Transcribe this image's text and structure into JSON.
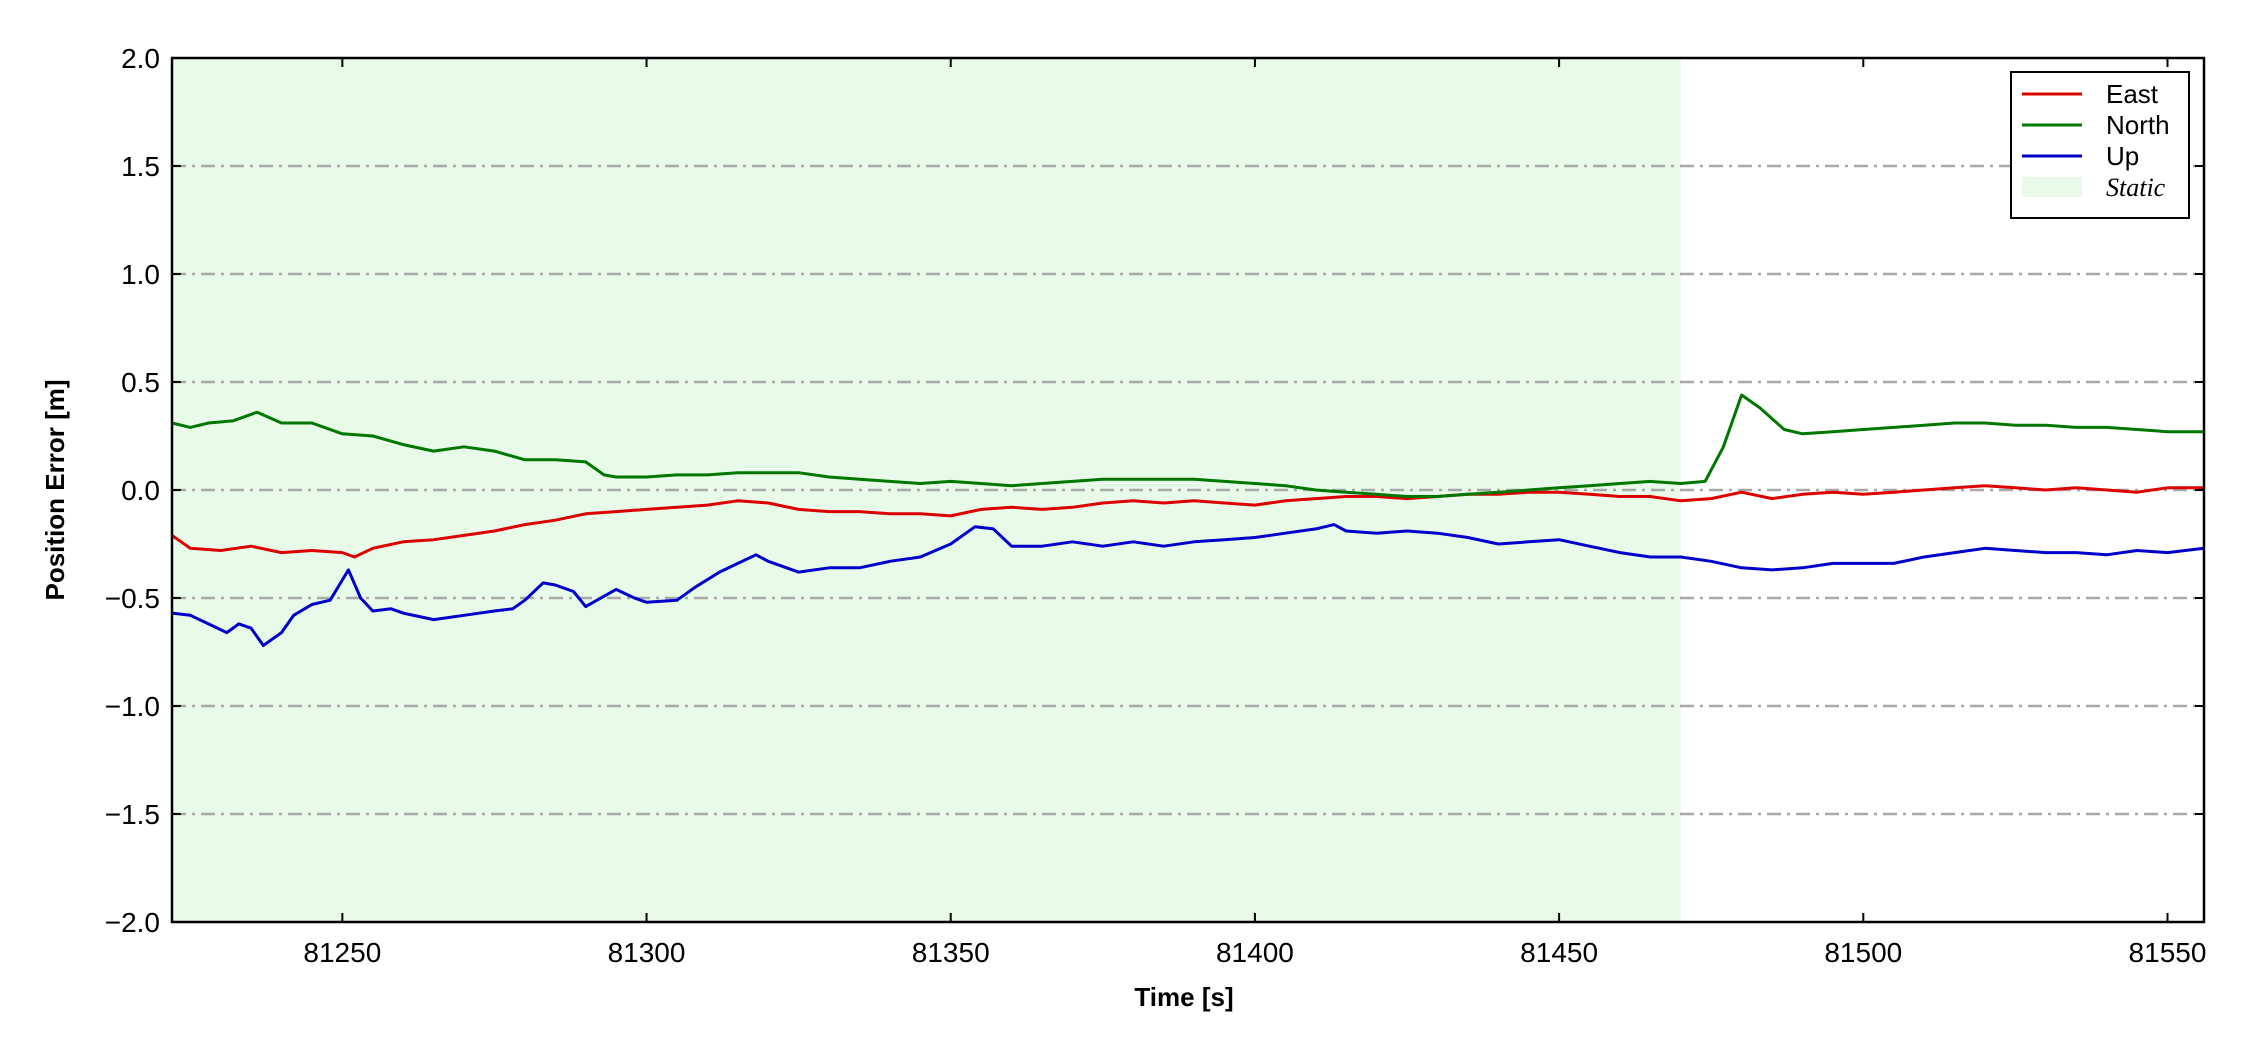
{
  "chart_data": {
    "type": "line",
    "title": "",
    "xlabel": "Time [s]",
    "ylabel": "Position Error [m]",
    "xlim": [
      81222,
      81556
    ],
    "ylim": [
      -2.0,
      2.0
    ],
    "x_ticks": [
      81250,
      81300,
      81350,
      81400,
      81450,
      81500,
      81550
    ],
    "x_tick_labels": [
      "81250",
      "81300",
      "81350",
      "81400",
      "81450",
      "81500",
      "81550"
    ],
    "y_ticks": [
      -2.0,
      -1.5,
      -1.0,
      -0.5,
      0.0,
      0.5,
      1.0,
      1.5,
      2.0
    ],
    "y_tick_labels": [
      "−2.0",
      "−1.5",
      "−1.0",
      "−0.5",
      "0.0",
      "0.5",
      "1.0",
      "1.5",
      "2.0"
    ],
    "grid": "horizontal dash-dot",
    "legend_position": "top-right",
    "static_region": {
      "label": "Static",
      "x_start": 81222,
      "x_end": 81470,
      "color": "#e8fbe8"
    },
    "series": [
      {
        "name": "East",
        "color": "#dd0000",
        "points": [
          [
            81222,
            -0.21
          ],
          [
            81225,
            -0.27
          ],
          [
            81230,
            -0.28
          ],
          [
            81235,
            -0.26
          ],
          [
            81240,
            -0.29
          ],
          [
            81245,
            -0.28
          ],
          [
            81250,
            -0.29
          ],
          [
            81252,
            -0.31
          ],
          [
            81255,
            -0.27
          ],
          [
            81260,
            -0.24
          ],
          [
            81265,
            -0.23
          ],
          [
            81270,
            -0.21
          ],
          [
            81275,
            -0.19
          ],
          [
            81280,
            -0.16
          ],
          [
            81285,
            -0.14
          ],
          [
            81290,
            -0.11
          ],
          [
            81295,
            -0.1
          ],
          [
            81300,
            -0.09
          ],
          [
            81305,
            -0.08
          ],
          [
            81310,
            -0.07
          ],
          [
            81315,
            -0.05
          ],
          [
            81320,
            -0.06
          ],
          [
            81325,
            -0.09
          ],
          [
            81330,
            -0.1
          ],
          [
            81335,
            -0.1
          ],
          [
            81340,
            -0.11
          ],
          [
            81345,
            -0.11
          ],
          [
            81350,
            -0.12
          ],
          [
            81355,
            -0.09
          ],
          [
            81360,
            -0.08
          ],
          [
            81365,
            -0.09
          ],
          [
            81370,
            -0.08
          ],
          [
            81375,
            -0.06
          ],
          [
            81380,
            -0.05
          ],
          [
            81385,
            -0.06
          ],
          [
            81390,
            -0.05
          ],
          [
            81395,
            -0.06
          ],
          [
            81400,
            -0.07
          ],
          [
            81405,
            -0.05
          ],
          [
            81410,
            -0.04
          ],
          [
            81415,
            -0.03
          ],
          [
            81420,
            -0.03
          ],
          [
            81425,
            -0.04
          ],
          [
            81430,
            -0.03
          ],
          [
            81435,
            -0.02
          ],
          [
            81440,
            -0.02
          ],
          [
            81445,
            -0.01
          ],
          [
            81450,
            -0.01
          ],
          [
            81455,
            -0.02
          ],
          [
            81460,
            -0.03
          ],
          [
            81465,
            -0.03
          ],
          [
            81470,
            -0.05
          ],
          [
            81475,
            -0.04
          ],
          [
            81480,
            -0.01
          ],
          [
            81485,
            -0.04
          ],
          [
            81490,
            -0.02
          ],
          [
            81495,
            -0.01
          ],
          [
            81500,
            -0.02
          ],
          [
            81505,
            -0.01
          ],
          [
            81510,
            0.0
          ],
          [
            81515,
            0.01
          ],
          [
            81520,
            0.02
          ],
          [
            81525,
            0.01
          ],
          [
            81530,
            0.0
          ],
          [
            81535,
            0.01
          ],
          [
            81540,
            0.0
          ],
          [
            81545,
            -0.01
          ],
          [
            81550,
            0.01
          ],
          [
            81556,
            0.01
          ]
        ]
      },
      {
        "name": "North",
        "color": "#007700",
        "points": [
          [
            81222,
            0.31
          ],
          [
            81225,
            0.29
          ],
          [
            81228,
            0.31
          ],
          [
            81232,
            0.32
          ],
          [
            81236,
            0.36
          ],
          [
            81240,
            0.31
          ],
          [
            81245,
            0.31
          ],
          [
            81250,
            0.26
          ],
          [
            81255,
            0.25
          ],
          [
            81260,
            0.21
          ],
          [
            81265,
            0.18
          ],
          [
            81270,
            0.2
          ],
          [
            81275,
            0.18
          ],
          [
            81280,
            0.14
          ],
          [
            81285,
            0.14
          ],
          [
            81290,
            0.13
          ],
          [
            81293,
            0.07
          ],
          [
            81295,
            0.06
          ],
          [
            81300,
            0.06
          ],
          [
            81305,
            0.07
          ],
          [
            81310,
            0.07
          ],
          [
            81315,
            0.08
          ],
          [
            81320,
            0.08
          ],
          [
            81325,
            0.08
          ],
          [
            81330,
            0.06
          ],
          [
            81335,
            0.05
          ],
          [
            81340,
            0.04
          ],
          [
            81345,
            0.03
          ],
          [
            81350,
            0.04
          ],
          [
            81355,
            0.03
          ],
          [
            81360,
            0.02
          ],
          [
            81365,
            0.03
          ],
          [
            81370,
            0.04
          ],
          [
            81375,
            0.05
          ],
          [
            81380,
            0.05
          ],
          [
            81385,
            0.05
          ],
          [
            81390,
            0.05
          ],
          [
            81395,
            0.04
          ],
          [
            81400,
            0.03
          ],
          [
            81405,
            0.02
          ],
          [
            81410,
            0.0
          ],
          [
            81415,
            -0.01
          ],
          [
            81420,
            -0.02
          ],
          [
            81425,
            -0.03
          ],
          [
            81430,
            -0.03
          ],
          [
            81435,
            -0.02
          ],
          [
            81440,
            -0.01
          ],
          [
            81445,
            0.0
          ],
          [
            81450,
            0.01
          ],
          [
            81455,
            0.02
          ],
          [
            81460,
            0.03
          ],
          [
            81465,
            0.04
          ],
          [
            81470,
            0.03
          ],
          [
            81474,
            0.04
          ],
          [
            81477,
            0.2
          ],
          [
            81480,
            0.44
          ],
          [
            81483,
            0.38
          ],
          [
            81487,
            0.28
          ],
          [
            81490,
            0.26
          ],
          [
            81495,
            0.27
          ],
          [
            81500,
            0.28
          ],
          [
            81505,
            0.29
          ],
          [
            81510,
            0.3
          ],
          [
            81515,
            0.31
          ],
          [
            81520,
            0.31
          ],
          [
            81525,
            0.3
          ],
          [
            81530,
            0.3
          ],
          [
            81535,
            0.29
          ],
          [
            81540,
            0.29
          ],
          [
            81545,
            0.28
          ],
          [
            81550,
            0.27
          ],
          [
            81556,
            0.27
          ]
        ]
      },
      {
        "name": "Up",
        "color": "#0000cc",
        "points": [
          [
            81222,
            -0.57
          ],
          [
            81225,
            -0.58
          ],
          [
            81228,
            -0.62
          ],
          [
            81231,
            -0.66
          ],
          [
            81233,
            -0.62
          ],
          [
            81235,
            -0.64
          ],
          [
            81237,
            -0.72
          ],
          [
            81240,
            -0.66
          ],
          [
            81242,
            -0.58
          ],
          [
            81245,
            -0.53
          ],
          [
            81248,
            -0.51
          ],
          [
            81251,
            -0.37
          ],
          [
            81253,
            -0.5
          ],
          [
            81255,
            -0.56
          ],
          [
            81258,
            -0.55
          ],
          [
            81260,
            -0.57
          ],
          [
            81265,
            -0.6
          ],
          [
            81270,
            -0.58
          ],
          [
            81275,
            -0.56
          ],
          [
            81278,
            -0.55
          ],
          [
            81280,
            -0.51
          ],
          [
            81283,
            -0.43
          ],
          [
            81285,
            -0.44
          ],
          [
            81288,
            -0.47
          ],
          [
            81290,
            -0.54
          ],
          [
            81295,
            -0.46
          ],
          [
            81298,
            -0.5
          ],
          [
            81300,
            -0.52
          ],
          [
            81305,
            -0.51
          ],
          [
            81308,
            -0.45
          ],
          [
            81312,
            -0.38
          ],
          [
            81315,
            -0.34
          ],
          [
            81318,
            -0.3
          ],
          [
            81320,
            -0.33
          ],
          [
            81325,
            -0.38
          ],
          [
            81330,
            -0.36
          ],
          [
            81335,
            -0.36
          ],
          [
            81340,
            -0.33
          ],
          [
            81345,
            -0.31
          ],
          [
            81350,
            -0.25
          ],
          [
            81354,
            -0.17
          ],
          [
            81357,
            -0.18
          ],
          [
            81360,
            -0.26
          ],
          [
            81365,
            -0.26
          ],
          [
            81370,
            -0.24
          ],
          [
            81375,
            -0.26
          ],
          [
            81380,
            -0.24
          ],
          [
            81385,
            -0.26
          ],
          [
            81390,
            -0.24
          ],
          [
            81395,
            -0.23
          ],
          [
            81400,
            -0.22
          ],
          [
            81405,
            -0.2
          ],
          [
            81410,
            -0.18
          ],
          [
            81413,
            -0.16
          ],
          [
            81415,
            -0.19
          ],
          [
            81420,
            -0.2
          ],
          [
            81425,
            -0.19
          ],
          [
            81430,
            -0.2
          ],
          [
            81435,
            -0.22
          ],
          [
            81440,
            -0.25
          ],
          [
            81445,
            -0.24
          ],
          [
            81450,
            -0.23
          ],
          [
            81455,
            -0.26
          ],
          [
            81460,
            -0.29
          ],
          [
            81465,
            -0.31
          ],
          [
            81470,
            -0.31
          ],
          [
            81475,
            -0.33
          ],
          [
            81480,
            -0.36
          ],
          [
            81485,
            -0.37
          ],
          [
            81490,
            -0.36
          ],
          [
            81495,
            -0.34
          ],
          [
            81500,
            -0.34
          ],
          [
            81505,
            -0.34
          ],
          [
            81510,
            -0.31
          ],
          [
            81515,
            -0.29
          ],
          [
            81520,
            -0.27
          ],
          [
            81525,
            -0.28
          ],
          [
            81530,
            -0.29
          ],
          [
            81535,
            -0.29
          ],
          [
            81540,
            -0.3
          ],
          [
            81545,
            -0.28
          ],
          [
            81550,
            -0.29
          ],
          [
            81556,
            -0.27
          ]
        ]
      }
    ]
  }
}
